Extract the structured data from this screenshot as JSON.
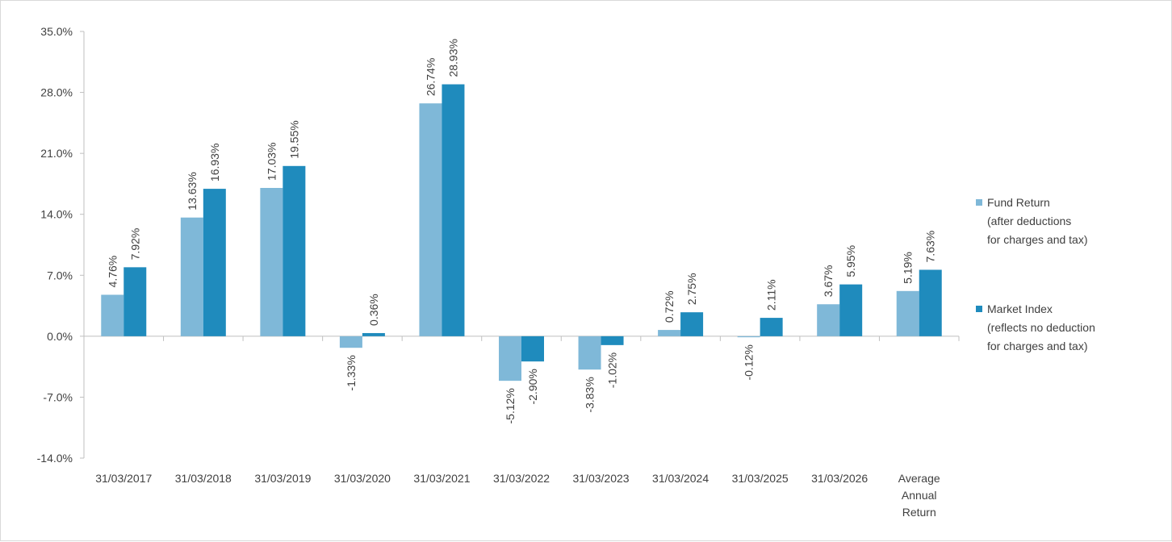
{
  "chart_data": {
    "type": "bar",
    "categories": [
      [
        "31/03/2017"
      ],
      [
        "31/03/2018"
      ],
      [
        "31/03/2019"
      ],
      [
        "31/03/2020"
      ],
      [
        "31/03/2021"
      ],
      [
        "31/03/2022"
      ],
      [
        "31/03/2023"
      ],
      [
        "31/03/2024"
      ],
      [
        "31/03/2025"
      ],
      [
        "31/03/2026"
      ],
      [
        "Average",
        "Annual",
        "Return"
      ]
    ],
    "series": [
      {
        "name_lines": [
          "Fund Return",
          "(after deductions",
          "for charges and tax)"
        ],
        "color": "#7fb8d8",
        "values": [
          4.76,
          13.63,
          17.03,
          -1.33,
          26.74,
          -5.12,
          -3.83,
          0.72,
          -0.12,
          3.67,
          5.19
        ],
        "labels": [
          "4.76%",
          "13.63%",
          "17.03%",
          "-1.33%",
          "26.74%",
          "-5.12%",
          "-3.83%",
          "0.72%",
          "-0.12%",
          "3.67%",
          "5.19%"
        ]
      },
      {
        "name_lines": [
          "Market Index",
          "(reflects no deduction",
          "for charges and tax)"
        ],
        "color": "#1f8bbd",
        "values": [
          7.92,
          16.93,
          19.55,
          0.36,
          28.93,
          -2.9,
          -1.02,
          2.75,
          2.11,
          5.95,
          7.63
        ],
        "labels": [
          "7.92%",
          "16.93%",
          "19.55%",
          "0.36%",
          "28.93%",
          "-2.90%",
          "-1.02%",
          "2.75%",
          "2.11%",
          "5.95%",
          "7.63%"
        ]
      }
    ],
    "y_ticks": [
      35,
      28,
      21,
      14,
      7,
      0,
      -7,
      -14
    ],
    "y_tick_labels": [
      "35.0%",
      "28.0%",
      "21.0%",
      "14.0%",
      "7.0%",
      "0.0%",
      "-7.0%",
      "-14.0%"
    ],
    "ylim": [
      -14,
      35
    ],
    "grid": false,
    "legend_position": "right",
    "axis_color": "#bfbfbf"
  }
}
